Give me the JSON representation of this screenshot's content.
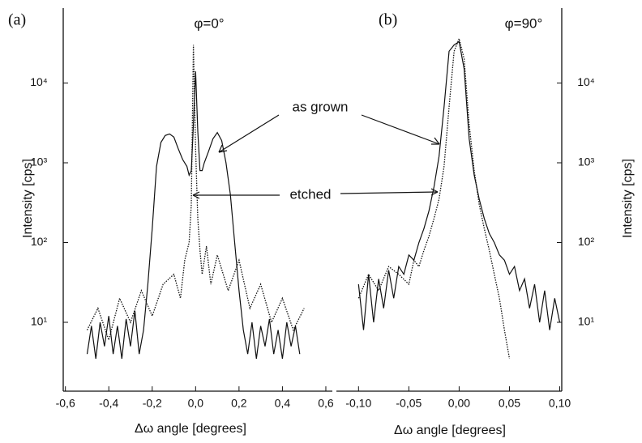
{
  "chart_data": [
    {
      "type": "line",
      "panel_label": "(a)",
      "title": "φ=0°",
      "xlabel": "Δω angle [degrees]",
      "ylabel": "Intensity [cps]",
      "yaxis_side": "left",
      "log_y": true,
      "annotations": [
        "as grown",
        "etched"
      ],
      "xlim": [
        -0.61,
        0.63
      ],
      "xticks": [
        {
          "value": -0.6,
          "label": "-0,6"
        },
        {
          "value": -0.4,
          "label": "-0,4"
        },
        {
          "value": -0.2,
          "label": "-0,2"
        },
        {
          "value": 0,
          "label": "0,0"
        },
        {
          "value": 0.2,
          "label": "0,2"
        },
        {
          "value": 0.4,
          "label": "0,4"
        },
        {
          "value": 0.6,
          "label": "0,6"
        }
      ],
      "ylim": [
        1.37,
        87000
      ],
      "yticks": [
        {
          "value": 10,
          "label": "10¹"
        },
        {
          "value": 100,
          "label": "10²"
        },
        {
          "value": 1000,
          "label": "10³"
        },
        {
          "value": 10000,
          "label": "10⁴"
        }
      ],
      "series": [
        {
          "color": "#111111",
          "style": "solid",
          "x": [
            -0.5,
            -0.48,
            -0.46,
            -0.44,
            -0.42,
            -0.4,
            -0.38,
            -0.36,
            -0.34,
            -0.32,
            -0.3,
            -0.28,
            -0.26,
            -0.24,
            -0.22,
            -0.2,
            -0.18,
            -0.16,
            -0.14,
            -0.12,
            -0.1,
            -0.08,
            -0.06,
            -0.04,
            -0.03,
            -0.02,
            -0.01,
            0,
            0.01,
            0.02,
            0.03,
            0.04,
            0.06,
            0.08,
            0.1,
            0.12,
            0.14,
            0.16,
            0.18,
            0.2,
            0.22,
            0.24,
            0.26,
            0.28,
            0.3,
            0.32,
            0.34,
            0.36,
            0.38,
            0.4,
            0.42,
            0.44,
            0.46,
            0.48
          ],
          "values": [
            4,
            9,
            3.5,
            10,
            5,
            12,
            4,
            9,
            3.5,
            11,
            5,
            14,
            4,
            8,
            30,
            150,
            900,
            1800,
            2200,
            2300,
            2100,
            1500,
            1100,
            900,
            700,
            800,
            3000,
            14000,
            2500,
            800,
            800,
            1000,
            1400,
            2000,
            2400,
            1900,
            1000,
            400,
            100,
            25,
            8,
            4,
            10,
            3.5,
            9,
            5,
            11,
            4,
            8,
            3.5,
            10,
            5,
            9,
            4
          ]
        },
        {
          "color": "#111111",
          "style": "dotted",
          "x": [
            -0.5,
            -0.45,
            -0.4,
            -0.35,
            -0.3,
            -0.25,
            -0.2,
            -0.15,
            -0.1,
            -0.07,
            -0.05,
            -0.03,
            -0.02,
            -0.01,
            0,
            0.01,
            0.02,
            0.03,
            0.05,
            0.07,
            0.1,
            0.15,
            0.2,
            0.25,
            0.3,
            0.35,
            0.4,
            0.45,
            0.5
          ],
          "values": [
            8,
            15,
            6,
            20,
            10,
            25,
            12,
            30,
            40,
            20,
            60,
            100,
            300,
            30000,
            1500,
            200,
            80,
            40,
            90,
            30,
            70,
            25,
            60,
            15,
            30,
            10,
            20,
            8,
            15
          ]
        }
      ]
    },
    {
      "type": "line",
      "panel_label": "(b)",
      "title": "φ=90°",
      "xlabel": "Δω angle [degrees]",
      "ylabel": "Intensity [cps]",
      "yaxis_side": "right",
      "log_y": true,
      "xlim": [
        -0.122,
        0.102
      ],
      "xticks": [
        {
          "value": -0.1,
          "label": "-0,10"
        },
        {
          "value": -0.05,
          "label": "-0,05"
        },
        {
          "value": 0,
          "label": "0,00"
        },
        {
          "value": 0.05,
          "label": "0,05"
        },
        {
          "value": 0.1,
          "label": "0,10"
        }
      ],
      "ylim": [
        1.37,
        87000
      ],
      "yticks": [
        {
          "value": 10,
          "label": "10¹"
        },
        {
          "value": 100,
          "label": "10²"
        },
        {
          "value": 1000,
          "label": "10³"
        },
        {
          "value": 10000,
          "label": "10⁴"
        }
      ],
      "series": [
        {
          "color": "#111111",
          "style": "solid",
          "x": [
            -0.1,
            -0.095,
            -0.09,
            -0.085,
            -0.08,
            -0.075,
            -0.07,
            -0.065,
            -0.06,
            -0.055,
            -0.05,
            -0.045,
            -0.04,
            -0.035,
            -0.03,
            -0.025,
            -0.02,
            -0.015,
            -0.01,
            -0.005,
            0,
            0.005,
            0.01,
            0.015,
            0.02,
            0.025,
            0.03,
            0.035,
            0.04,
            0.045,
            0.05,
            0.055,
            0.06,
            0.065,
            0.07,
            0.075,
            0.08,
            0.085,
            0.09,
            0.095,
            0.1
          ],
          "values": [
            30,
            8,
            40,
            10,
            35,
            15,
            45,
            20,
            50,
            40,
            70,
            60,
            100,
            150,
            250,
            500,
            1200,
            5000,
            25000,
            30000,
            33000,
            15000,
            2000,
            700,
            350,
            200,
            130,
            100,
            70,
            60,
            40,
            50,
            25,
            35,
            15,
            30,
            10,
            25,
            8,
            20,
            10
          ]
        },
        {
          "color": "#111111",
          "style": "dotted",
          "x": [
            -0.1,
            -0.09,
            -0.08,
            -0.07,
            -0.06,
            -0.05,
            -0.045,
            -0.04,
            -0.035,
            -0.03,
            -0.025,
            -0.02,
            -0.015,
            -0.01,
            -0.005,
            0,
            0.005,
            0.01,
            0.015,
            0.02,
            0.025,
            0.03,
            0.035,
            0.04,
            0.045,
            0.05
          ],
          "values": [
            20,
            40,
            25,
            50,
            40,
            30,
            60,
            50,
            80,
            120,
            200,
            350,
            900,
            5000,
            25000,
            36000,
            20000,
            3000,
            800,
            300,
            150,
            80,
            40,
            20,
            8,
            3.5
          ]
        }
      ]
    }
  ]
}
